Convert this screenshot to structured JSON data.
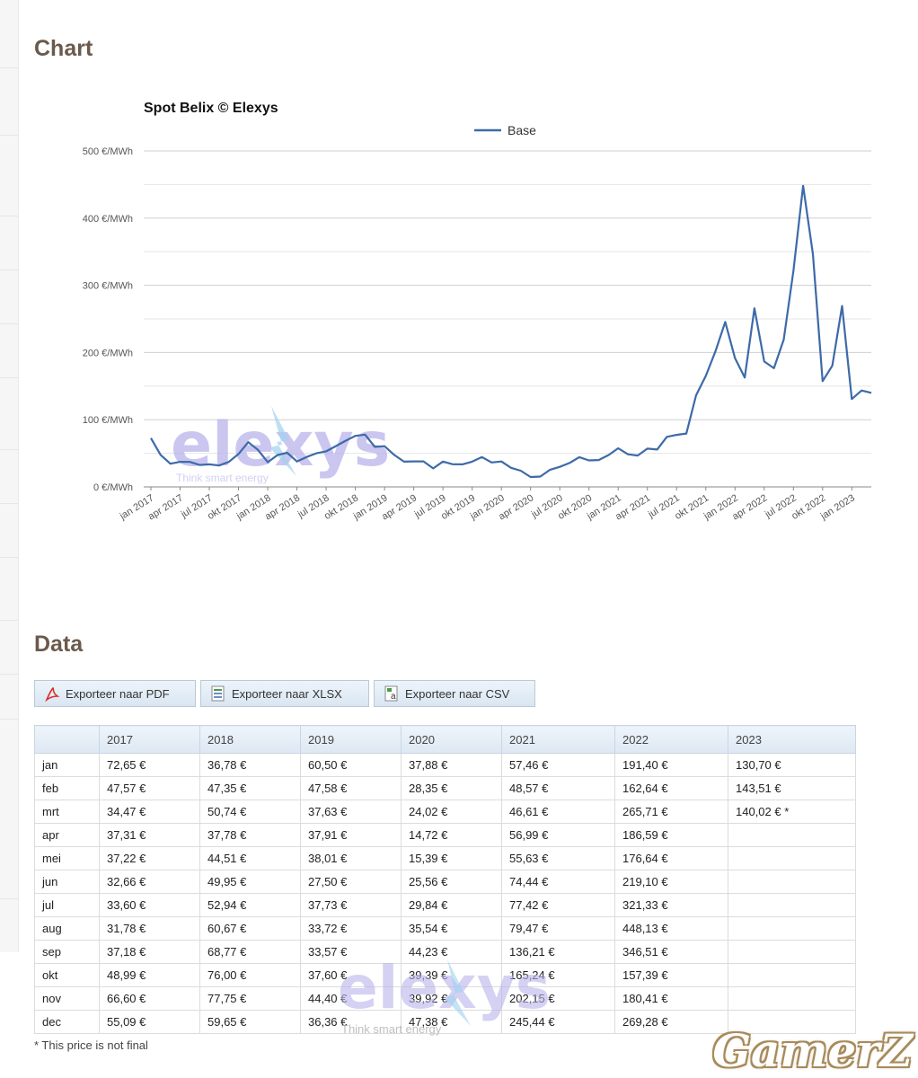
{
  "sections": {
    "chart_heading": "Chart",
    "data_heading": "Data"
  },
  "chart_data": {
    "type": "line",
    "title": "Spot Belix © Elexys",
    "xlabel": "",
    "ylabel": "",
    "ylim": [
      0,
      500
    ],
    "y_ticks": [
      "0 €/MWh",
      "100 €/MWh",
      "200 €/MWh",
      "300 €/MWh",
      "400 €/MWh",
      "500 €/MWh"
    ],
    "y_tick_values": [
      0,
      100,
      200,
      300,
      400,
      500
    ],
    "grid": true,
    "legend": "top-center",
    "x_ticks": [
      "jan 2017",
      "apr 2017",
      "jul 2017",
      "okt 2017",
      "jan 2018",
      "apr 2018",
      "jul 2018",
      "okt 2018",
      "jan 2019",
      "apr 2019",
      "jul 2019",
      "okt 2019",
      "jan 2020",
      "apr 2020",
      "jul 2020",
      "okt 2020",
      "jan 2021",
      "apr 2021",
      "jul 2021",
      "okt 2021",
      "jan 2022",
      "apr 2022",
      "jul 2022",
      "okt 2022",
      "jan 2023"
    ],
    "series": [
      {
        "name": "Base",
        "color": "#3d6aa8",
        "values": [
          72.65,
          47.57,
          34.47,
          37.31,
          37.22,
          32.66,
          33.6,
          31.78,
          37.18,
          48.99,
          66.6,
          55.09,
          36.78,
          47.35,
          50.74,
          37.78,
          44.51,
          49.95,
          52.94,
          60.67,
          68.77,
          76.0,
          77.75,
          59.65,
          60.5,
          47.58,
          37.63,
          37.91,
          38.01,
          27.5,
          37.73,
          33.72,
          33.57,
          37.6,
          44.4,
          36.36,
          37.88,
          28.35,
          24.02,
          14.72,
          15.39,
          25.56,
          29.84,
          35.54,
          44.23,
          39.39,
          39.92,
          47.38,
          57.46,
          48.57,
          46.61,
          56.99,
          55.63,
          74.44,
          77.42,
          79.47,
          136.21,
          165.24,
          202.15,
          245.44,
          191.4,
          162.64,
          265.71,
          186.59,
          176.64,
          219.1,
          321.33,
          448.13,
          346.51,
          157.39,
          180.41,
          269.28,
          130.7,
          143.51,
          140.02
        ]
      }
    ]
  },
  "export_buttons": [
    {
      "label": "Exporteer naar PDF",
      "icon": "pdf-icon"
    },
    {
      "label": "Exporteer naar XLSX",
      "icon": "xlsx-icon"
    },
    {
      "label": "Exporteer naar CSV",
      "icon": "csv-icon"
    }
  ],
  "table": {
    "headers": [
      "",
      "2017",
      "2018",
      "2019",
      "2020",
      "2021",
      "2022",
      "2023"
    ],
    "rows": [
      [
        "jan",
        "72,65 €",
        "36,78 €",
        "60,50 €",
        "37,88 €",
        "57,46 €",
        "191,40 €",
        "130,70 €"
      ],
      [
        "feb",
        "47,57 €",
        "47,35 €",
        "47,58 €",
        "28,35 €",
        "48,57 €",
        "162,64 €",
        "143,51 €"
      ],
      [
        "mrt",
        "34,47 €",
        "50,74 €",
        "37,63 €",
        "24,02 €",
        "46,61 €",
        "265,71 €",
        "140,02 € *"
      ],
      [
        "apr",
        "37,31 €",
        "37,78 €",
        "37,91 €",
        "14,72 €",
        "56,99 €",
        "186,59 €",
        ""
      ],
      [
        "mei",
        "37,22 €",
        "44,51 €",
        "38,01 €",
        "15,39 €",
        "55,63 €",
        "176,64 €",
        ""
      ],
      [
        "jun",
        "32,66 €",
        "49,95 €",
        "27,50 €",
        "25,56 €",
        "74,44 €",
        "219,10 €",
        ""
      ],
      [
        "jul",
        "33,60 €",
        "52,94 €",
        "37,73 €",
        "29,84 €",
        "77,42 €",
        "321,33 €",
        ""
      ],
      [
        "aug",
        "31,78 €",
        "60,67 €",
        "33,72 €",
        "35,54 €",
        "79,47 €",
        "448,13 €",
        ""
      ],
      [
        "sep",
        "37,18 €",
        "68,77 €",
        "33,57 €",
        "44,23 €",
        "136,21 €",
        "346,51 €",
        ""
      ],
      [
        "okt",
        "48,99 €",
        "76,00 €",
        "37,60 €",
        "39,39 €",
        "165,24 €",
        "157,39 €",
        ""
      ],
      [
        "nov",
        "66,60 €",
        "77,75 €",
        "44,40 €",
        "39,92 €",
        "202,15 €",
        "180,41 €",
        ""
      ],
      [
        "dec",
        "55,09 €",
        "59,65 €",
        "36,36 €",
        "47,38 €",
        "245,44 €",
        "269,28 €",
        ""
      ]
    ]
  },
  "footnote": "* This price is not final",
  "watermarks": {
    "brand": "elexys",
    "tagline": "Think smart energy",
    "corner": "GamerZ"
  }
}
